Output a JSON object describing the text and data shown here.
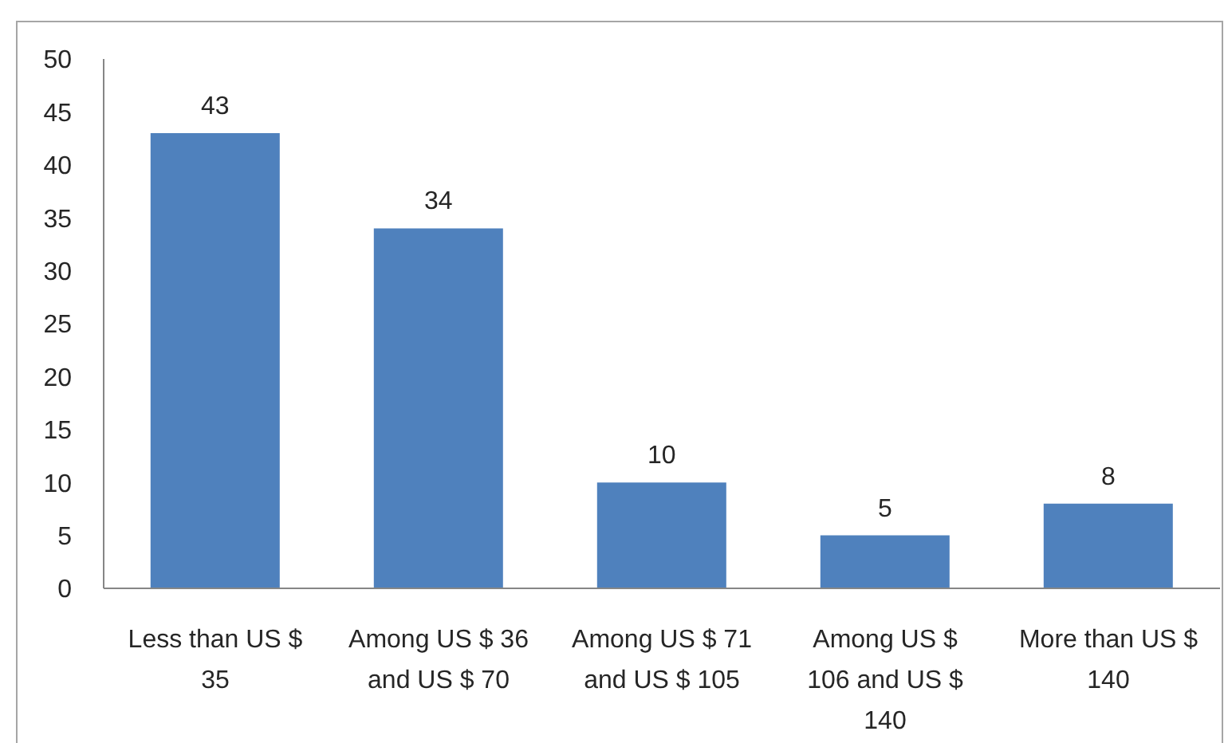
{
  "chart_data": {
    "type": "bar",
    "categories": [
      "Less than US $ 35",
      "Among US $ 36 and US $ 70",
      "Among US $ 71 and US $ 105",
      "Among US $ 106 and US $ 140",
      "More than US $ 140"
    ],
    "values": [
      43,
      34,
      10,
      5,
      8
    ],
    "color": "#4f81bd",
    "ylim": [
      0,
      50
    ],
    "yticks": [
      0,
      5,
      10,
      15,
      20,
      25,
      30,
      35,
      40,
      45,
      50
    ],
    "data_labels": true
  }
}
